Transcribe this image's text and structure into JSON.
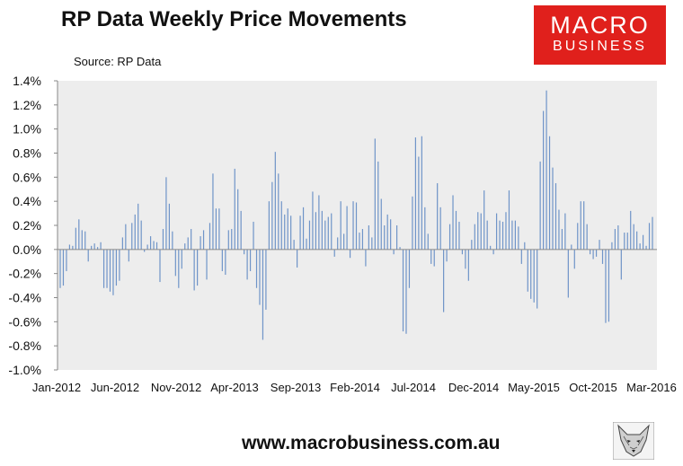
{
  "header": {
    "title": "RP Data Weekly Price Movements",
    "source": "Source: RP Data"
  },
  "logo": {
    "line1": "MACRO",
    "line2": "BUSINESS"
  },
  "footer": {
    "url": "www.macrobusiness.com.au"
  },
  "colors": {
    "bar": "#6f94c8",
    "plot_bg": "#ededed",
    "brand_red": "#e0201c"
  },
  "chart_data": {
    "type": "bar",
    "title": "RP Data Weekly Price Movements",
    "xlabel": "",
    "ylabel": "",
    "ylim": [
      -1.0,
      1.4
    ],
    "yticks": [
      -1.0,
      -0.8,
      -0.6,
      -0.4,
      -0.2,
      0.0,
      0.2,
      0.4,
      0.6,
      0.8,
      1.0,
      1.2,
      1.4
    ],
    "ytick_labels": [
      "-1.0%",
      "-0.8%",
      "-0.6%",
      "-0.4%",
      "-0.2%",
      "0.0%",
      "0.2%",
      "0.4%",
      "0.6%",
      "0.8%",
      "1.0%",
      "1.2%",
      "1.4%"
    ],
    "xtick_labels": [
      "Jan-2012",
      "Jun-2012",
      "Nov-2012",
      "Apr-2013",
      "Sep-2013",
      "Feb-2014",
      "Jul-2014",
      "Dec-2014",
      "May-2015",
      "Oct-2015",
      "Mar-2016"
    ],
    "grid": false,
    "series": [
      {
        "values": [
          -0.32,
          -0.3,
          -0.18,
          0.04,
          0.03,
          0.18,
          0.25,
          0.16,
          0.15,
          -0.1,
          0.03,
          0.05,
          0.02,
          0.06,
          -0.32,
          -0.32,
          -0.35,
          -0.38,
          -0.3,
          -0.26,
          0.1,
          0.21,
          -0.1,
          0.22,
          0.29,
          0.38,
          0.24,
          -0.02,
          0.04,
          0.11,
          0.07,
          0.06,
          -0.27,
          0.17,
          0.6,
          0.38,
          0.15,
          -0.22,
          -0.32,
          -0.16,
          0.05,
          0.1,
          0.17,
          -0.34,
          -0.3,
          0.11,
          0.16,
          -0.25,
          0.22,
          0.63,
          0.34,
          0.34,
          -0.18,
          -0.21,
          0.16,
          0.17,
          0.67,
          0.5,
          0.32,
          -0.04,
          -0.25,
          -0.18,
          0.23,
          -0.32,
          -0.46,
          -0.75,
          -0.5,
          0.4,
          0.56,
          0.81,
          0.63,
          0.4,
          0.29,
          0.34,
          0.28,
          0.08,
          -0.15,
          0.28,
          0.35,
          0.09,
          0.24,
          0.48,
          0.31,
          0.45,
          0.32,
          0.24,
          0.27,
          0.3,
          -0.06,
          0.1,
          0.4,
          0.13,
          0.36,
          -0.07,
          0.4,
          0.39,
          0.14,
          0.17,
          -0.14,
          0.2,
          0.1,
          0.92,
          0.73,
          0.42,
          0.2,
          0.29,
          0.25,
          -0.04,
          0.2,
          0.02,
          -0.68,
          -0.7,
          -0.32,
          0.44,
          0.93,
          0.77,
          0.94,
          0.35,
          0.13,
          -0.12,
          -0.14,
          0.55,
          0.35,
          -0.52,
          -0.1,
          0.21,
          0.45,
          0.32,
          0.23,
          -0.04,
          -0.16,
          -0.26,
          0.08,
          0.21,
          0.31,
          0.3,
          0.49,
          0.24,
          0.03,
          -0.04,
          0.3,
          0.24,
          0.23,
          0.31,
          0.49,
          0.24,
          0.24,
          0.19,
          -0.12,
          0.06,
          -0.35,
          -0.41,
          -0.44,
          -0.49,
          0.73,
          1.15,
          1.32,
          0.94,
          0.68,
          0.55,
          0.33,
          0.17,
          0.3,
          -0.4,
          0.04,
          -0.16,
          0.22,
          0.4,
          0.4,
          0.21,
          -0.04,
          -0.08,
          -0.06,
          0.08,
          -0.12,
          -0.61,
          -0.6,
          0.06,
          0.17,
          0.2,
          -0.25,
          0.14,
          0.14,
          0.32,
          0.21,
          0.15,
          0.05,
          0.12,
          0.03,
          0.22,
          0.27
        ]
      }
    ]
  }
}
